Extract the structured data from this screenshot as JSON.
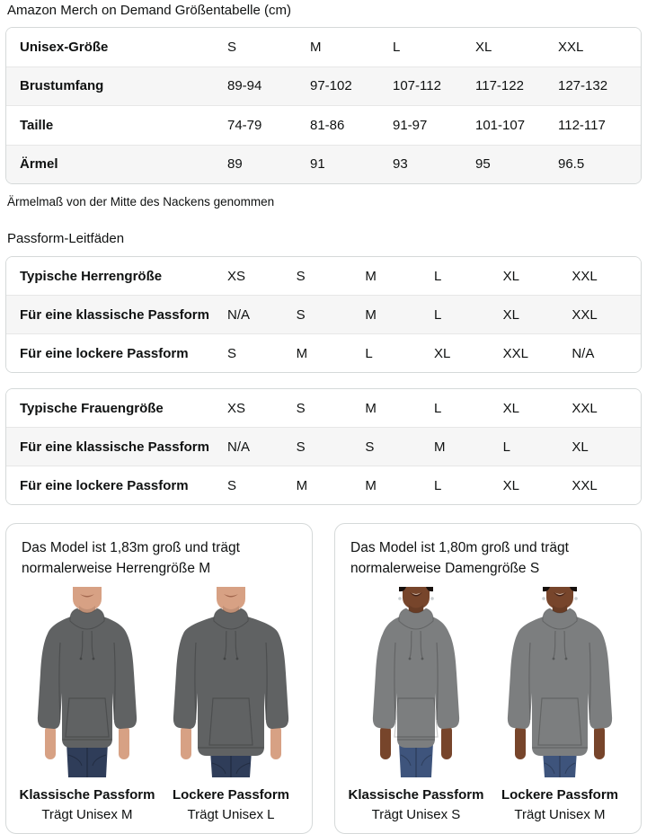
{
  "page": {
    "title": "Amazon Merch on Demand Größentabelle (cm)"
  },
  "size_table": {
    "header": {
      "label": "Unisex-Größe",
      "sizes": [
        "S",
        "M",
        "L",
        "XL",
        "XXL"
      ]
    },
    "rows": [
      {
        "label": "Brustumfang",
        "values": [
          "89-94",
          "97-102",
          "107-112",
          "117-122",
          "127-132"
        ]
      },
      {
        "label": "Taille",
        "values": [
          "74-79",
          "81-86",
          "91-97",
          "101-107",
          "112-117"
        ]
      },
      {
        "label": "Ärmel",
        "values": [
          "89",
          "91",
          "93",
          "95",
          "96.5"
        ]
      }
    ],
    "footnote": "Ärmelmaß von der Mitte des Nackens genommen"
  },
  "fit_section": {
    "title": "Passform-Leitfäden",
    "tables": [
      {
        "rows": [
          {
            "label": "Typische Herrengröße",
            "values": [
              "XS",
              "S",
              "M",
              "L",
              "XL",
              "XXL"
            ]
          },
          {
            "label": "Für eine klassische Passform",
            "values": [
              "N/A",
              "S",
              "M",
              "L",
              "XL",
              "XXL"
            ]
          },
          {
            "label": "Für eine lockere Passform",
            "values": [
              "S",
              "M",
              "L",
              "XL",
              "XXL",
              "N/A"
            ]
          }
        ]
      },
      {
        "rows": [
          {
            "label": "Typische Frauengröße",
            "values": [
              "XS",
              "S",
              "M",
              "L",
              "XL",
              "XXL"
            ]
          },
          {
            "label": "Für eine klassische Passform",
            "values": [
              "N/A",
              "S",
              "S",
              "M",
              "L",
              "XL"
            ]
          },
          {
            "label": "Für eine lockere Passform",
            "values": [
              "S",
              "M",
              "M",
              "L",
              "XL",
              "XXL"
            ]
          }
        ]
      }
    ]
  },
  "model_cards": [
    {
      "description": "Das Model ist 1,83m groß und trägt normalerweise Herrengröße M",
      "photos": [
        {
          "fit_label": "Klassische Passform",
          "wears_label": "Trägt Unisex M",
          "model": "male",
          "fit": "classic"
        },
        {
          "fit_label": "Lockere Passform",
          "wears_label": "Trägt Unisex L",
          "model": "male",
          "fit": "loose"
        }
      ]
    },
    {
      "description": "Das Model ist 1,80m groß und trägt normalerweise Damengröße S",
      "photos": [
        {
          "fit_label": "Klassische Passform",
          "wears_label": "Trägt Unisex S",
          "model": "female",
          "fit": "classic"
        },
        {
          "fit_label": "Lockere Passform",
          "wears_label": "Trägt Unisex M",
          "model": "female",
          "fit": "loose"
        }
      ]
    }
  ],
  "colors": {
    "text": "#0f1111",
    "border": "#d5d9d9",
    "separator": "#e7e7e7",
    "stripe": "#f6f6f6",
    "hoodie_male": "#606263",
    "hoodie_female": "#7c7e7f",
    "skin_male": "#d7a184",
    "skin_female": "#77452b",
    "jeans_male": "#2f3d59",
    "jeans_female": "#3e547c"
  }
}
